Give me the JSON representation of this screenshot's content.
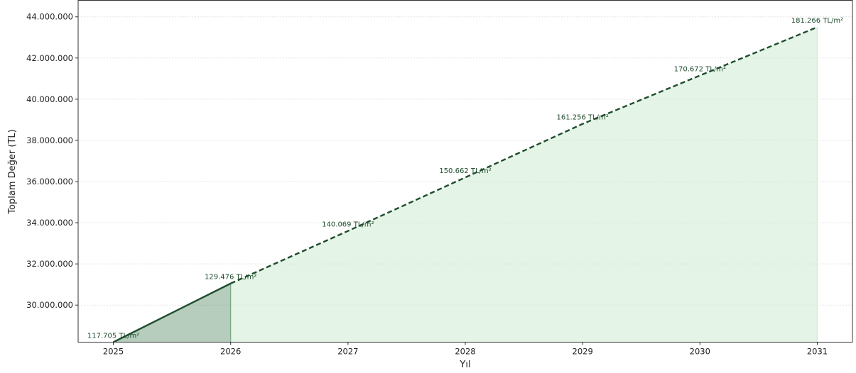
{
  "chart_data": {
    "type": "area",
    "title": "",
    "xlabel": "Yıl",
    "ylabel": "Toplam Değer (TL)",
    "xlim": [
      2024.7,
      2031.3
    ],
    "ylim": [
      28200000,
      44800000
    ],
    "grid": true,
    "x_ticks": [
      2025,
      2026,
      2027,
      2028,
      2029,
      2030,
      2031
    ],
    "x_tick_labels": [
      "2025",
      "2026",
      "2027",
      "2028",
      "2029",
      "2030",
      "2031"
    ],
    "y_ticks": [
      30000000,
      32000000,
      34000000,
      36000000,
      38000000,
      40000000,
      42000000,
      44000000
    ],
    "y_tick_labels": [
      "30.000.000",
      "32.000.000",
      "34.000.000",
      "36.000.000",
      "38.000.000",
      "40.000.000",
      "42.000.000",
      "44.000.000"
    ],
    "series": [
      {
        "style": "solid",
        "color": "#1f4d2e",
        "fill_color": "#2f6f45",
        "x": [
          2025,
          2026
        ],
        "y": [
          28200000,
          31050000
        ]
      },
      {
        "style": "dashed",
        "color": "#1f4d2e",
        "fill_color": "#cdebd2",
        "x": [
          2026,
          2027,
          2028,
          2029,
          2030,
          2031
        ],
        "y": [
          31050000,
          33600000,
          36200000,
          38800000,
          41150000,
          43500000
        ]
      }
    ],
    "annotations": [
      {
        "x": 2025,
        "y": 28200000,
        "text": "117.705 TL/m²"
      },
      {
        "x": 2026,
        "y": 31050000,
        "text": "129.476 TL/m²"
      },
      {
        "x": 2027,
        "y": 33600000,
        "text": "140.069 TL/m²"
      },
      {
        "x": 2028,
        "y": 36200000,
        "text": "150.662 TL/m²"
      },
      {
        "x": 2029,
        "y": 38800000,
        "text": "161.256 TL/m²"
      },
      {
        "x": 2030,
        "y": 41150000,
        "text": "170.672 TL/m²"
      },
      {
        "x": 2031,
        "y": 43500000,
        "text": "181.266 TL/m²"
      }
    ]
  }
}
